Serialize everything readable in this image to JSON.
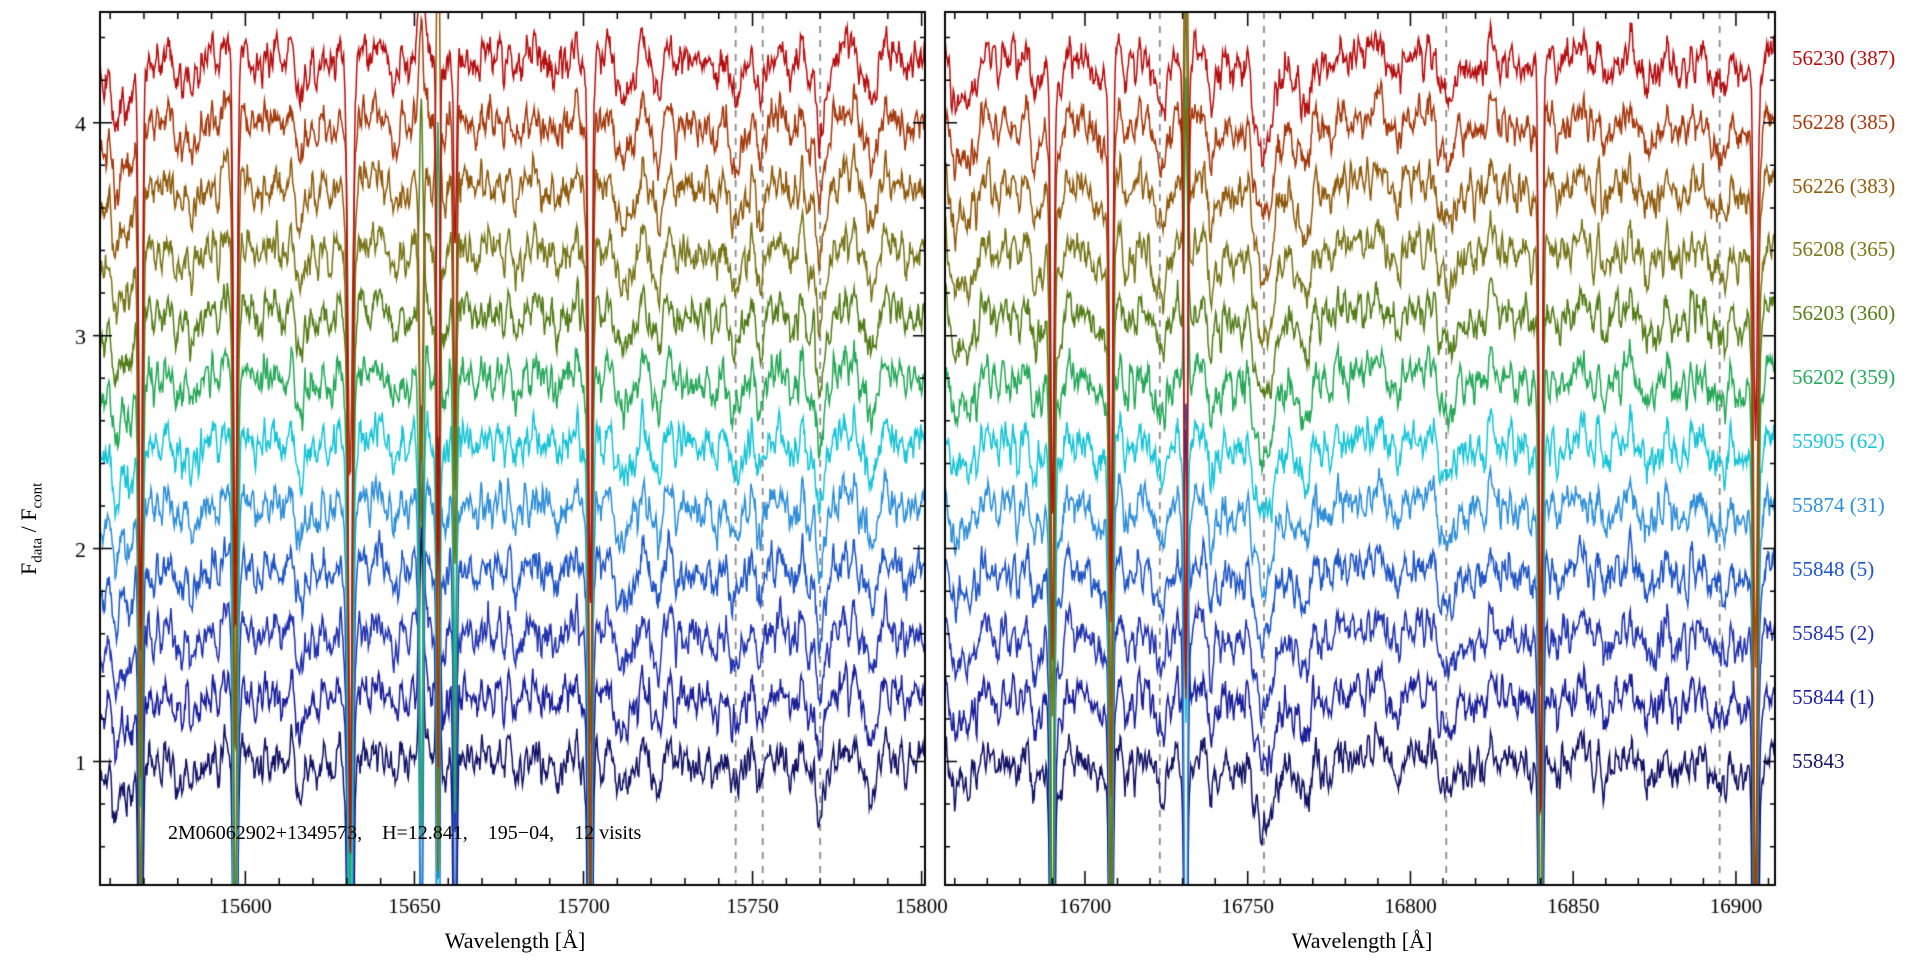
{
  "chart_data": {
    "type": "line",
    "figure": {
      "annotation": "2M06062902+1349573,    H=12.841,    195−04,    12 visits",
      "xlabel": "Wavelength [Å]",
      "ylabel_f": "F",
      "ylabel_sub1": "data",
      "ylabel_mid": " / F",
      "ylabel_sub2": "cont"
    },
    "axes": {
      "y_ticks": [
        1,
        2,
        3,
        4
      ],
      "y_min": 0.42,
      "y_max": 4.52,
      "offset_base": 1.0,
      "offset_step": 0.3
    },
    "panels": [
      {
        "name": "left",
        "x_min": 15557,
        "x_max": 15801,
        "x_ticks": [
          15600,
          15650,
          15700,
          15750,
          15800
        ],
        "x_minor_step": 10,
        "dashed_lines": [
          15745,
          15753,
          15770
        ],
        "absorption": [
          [
            15563,
            3.0,
            0.22
          ],
          [
            15585,
            2.0,
            0.07
          ],
          [
            15617,
            2.0,
            0.08
          ],
          [
            15645,
            2.0,
            0.08
          ],
          [
            15675,
            2.0,
            0.07
          ],
          [
            15690,
            2.0,
            0.06
          ],
          [
            15712,
            2.0,
            0.1
          ],
          [
            15722,
            2.0,
            0.06
          ],
          [
            15745,
            1.8,
            0.16
          ],
          [
            15753,
            1.8,
            0.14
          ],
          [
            15770,
            2.5,
            0.22
          ],
          [
            15785,
            2.0,
            0.1
          ]
        ],
        "spikes": [
          [
            15569,
            0.5,
            2.6,
            0
          ],
          [
            15597,
            0.5,
            3.0,
            0
          ],
          [
            15631,
            0.6,
            2.8,
            0
          ],
          [
            15652,
            0.5,
            1.8,
            1
          ],
          [
            15657,
            0.4,
            2.2,
            1
          ],
          [
            15662,
            0.4,
            1.5,
            0
          ],
          [
            15702,
            0.5,
            3.0,
            0
          ]
        ]
      },
      {
        "name": "right",
        "x_min": 16657,
        "x_max": 16912,
        "x_ticks": [
          16700,
          16750,
          16800,
          16850,
          16900
        ],
        "x_minor_step": 10,
        "dashed_lines": [
          16723,
          16755,
          16811,
          16895
        ],
        "absorption": [
          [
            16662,
            3.0,
            0.2
          ],
          [
            16685,
            2.0,
            0.08
          ],
          [
            16723,
            2.2,
            0.2
          ],
          [
            16740,
            2.0,
            0.1
          ],
          [
            16755,
            3.0,
            0.3
          ],
          [
            16767,
            2.0,
            0.15
          ],
          [
            16811,
            2.0,
            0.12
          ],
          [
            16830,
            2.0,
            0.06
          ],
          [
            16873,
            2.0,
            0.07
          ],
          [
            16895,
            2.0,
            0.1
          ]
        ],
        "spikes": [
          [
            16690,
            0.5,
            2.8,
            0
          ],
          [
            16708,
            0.5,
            2.6,
            0
          ],
          [
            16731,
            0.5,
            2.2,
            1
          ],
          [
            16840,
            0.5,
            2.6,
            0
          ],
          [
            16906,
            0.6,
            3.0,
            0
          ]
        ]
      }
    ],
    "series": [
      {
        "label": "56230 (387)",
        "color": "#b60f10",
        "offset": 4.3
      },
      {
        "label": "56228 (385)",
        "color": "#a43a0e",
        "offset": 4.0
      },
      {
        "label": "56226 (383)",
        "color": "#8f5c0f",
        "offset": 3.7
      },
      {
        "label": "56208 (365)",
        "color": "#77761a",
        "offset": 3.4
      },
      {
        "label": "56203 (360)",
        "color": "#557d1a",
        "offset": 3.1
      },
      {
        "label": "56202 (359)",
        "color": "#27a85a",
        "offset": 2.8
      },
      {
        "label": "55905 (62)",
        "color": "#19c4d6",
        "offset": 2.5
      },
      {
        "label": "55874 (31)",
        "color": "#2f8fd8",
        "offset": 2.2
      },
      {
        "label": "55848 (5)",
        "color": "#1f55c4",
        "offset": 1.9
      },
      {
        "label": "55845 (2)",
        "color": "#2233ae",
        "offset": 1.6
      },
      {
        "label": "55844 (1)",
        "color": "#1a1f9a",
        "offset": 1.3
      },
      {
        "label": "55843",
        "color": "#141464",
        "offset": 1.0
      }
    ],
    "style": {
      "dash_color": "#8b8b8b",
      "axis_color": "#000000",
      "background": "#ffffff"
    },
    "synthesis": {
      "stellar_noise": 0.05,
      "slow_noise": 0.018,
      "visit_noise": 0.035,
      "samples": 1200
    }
  }
}
